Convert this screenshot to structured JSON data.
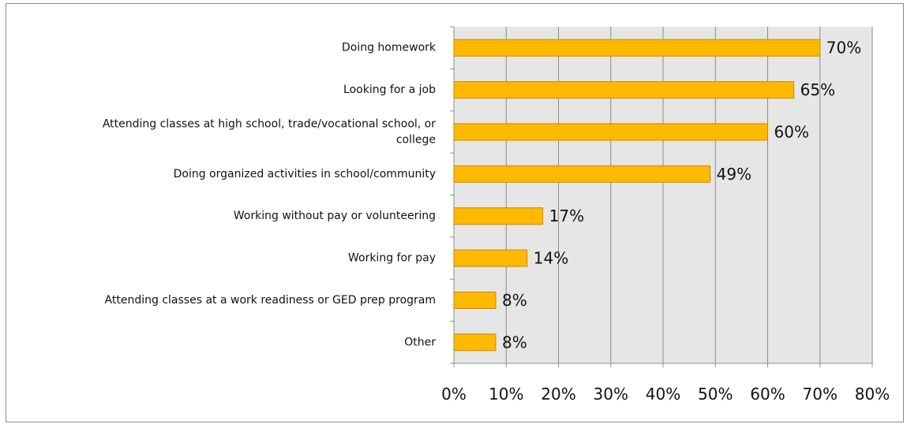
{
  "chart_data": {
    "type": "bar",
    "orientation": "horizontal",
    "categories": [
      [
        "Doing homework"
      ],
      [
        "Looking for a job"
      ],
      [
        "Attending classes at high school, trade/vocational school, or",
        "college"
      ],
      [
        "Doing organized activities in school/community"
      ],
      [
        "Working without pay or volunteering"
      ],
      [
        "Working for pay"
      ],
      [
        "Attending classes at a work readiness or GED prep program"
      ],
      [
        "Other"
      ]
    ],
    "values": [
      70,
      65,
      60,
      49,
      17,
      14,
      8,
      8
    ],
    "data_labels": [
      "70%",
      "65%",
      "60%",
      "49%",
      "17%",
      "14%",
      "8%",
      "8%"
    ],
    "xlim": [
      0,
      80
    ],
    "xticks": [
      0,
      10,
      20,
      30,
      40,
      50,
      60,
      70,
      80
    ],
    "xtick_labels": [
      "0%",
      "10%",
      "20%",
      "30%",
      "40%",
      "50%",
      "60%",
      "70%",
      "80%"
    ],
    "grid": true,
    "legend": "none",
    "colors": {
      "bar_fill": "#FFB900",
      "bar_stroke": "#C88A00",
      "plot_background": "#E6E6E6",
      "gridline": "#8C8C8C",
      "axis": "#8C8C8C"
    }
  }
}
